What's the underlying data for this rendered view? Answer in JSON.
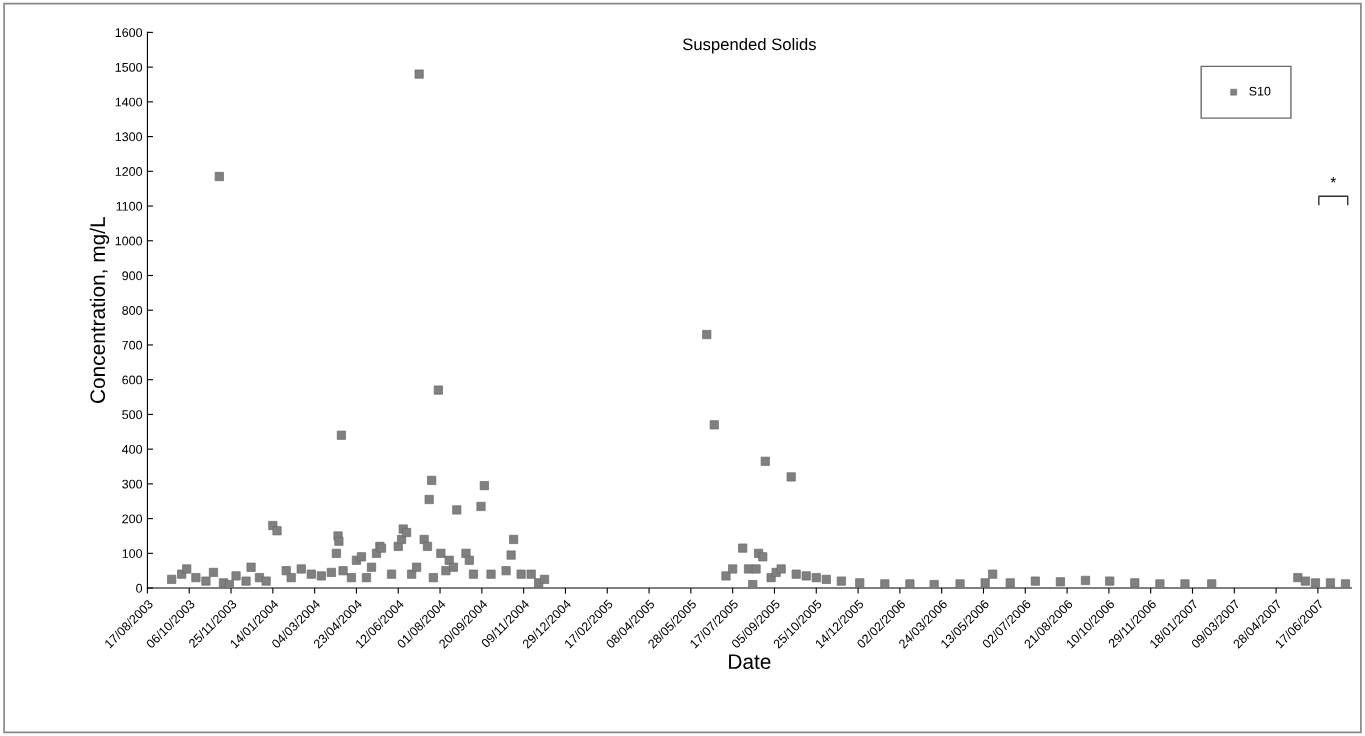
{
  "chart_data": {
    "type": "scatter",
    "title": "Suspended Solids",
    "xlabel": "Date",
    "ylabel": "Concentration, mg/L",
    "x": [
      "2003-09-15",
      "2003-09-27",
      "2003-10-03",
      "2003-10-14",
      "2003-10-26",
      "2003-11-04",
      "2003-11-11",
      "2003-11-16",
      "2003-11-23",
      "2003-12-01",
      "2003-12-13",
      "2003-12-19",
      "2003-12-29",
      "2004-01-06",
      "2004-01-14",
      "2004-01-19",
      "2004-01-30",
      "2004-02-05",
      "2004-02-17",
      "2004-02-29",
      "2004-03-12",
      "2004-03-24",
      "2004-03-30",
      "2004-04-01",
      "2004-04-02",
      "2004-04-05",
      "2004-04-07",
      "2004-04-17",
      "2004-04-23",
      "2004-04-29",
      "2004-05-05",
      "2004-05-11",
      "2004-05-17",
      "2004-05-21",
      "2004-05-23",
      "2004-06-04",
      "2004-06-12",
      "2004-06-16",
      "2004-06-18",
      "2004-06-22",
      "2004-06-28",
      "2004-07-04",
      "2004-07-07",
      "2004-07-13",
      "2004-07-17",
      "2004-07-19",
      "2004-07-22",
      "2004-07-24",
      "2004-07-30",
      "2004-08-02",
      "2004-08-08",
      "2004-08-12",
      "2004-08-17",
      "2004-08-21",
      "2004-09-01",
      "2004-09-05",
      "2004-09-10",
      "2004-09-19",
      "2004-09-23",
      "2004-10-01",
      "2004-10-19",
      "2004-10-25",
      "2004-10-28",
      "2004-11-06",
      "2004-11-18",
      "2004-11-27",
      "2004-12-04",
      "2005-06-16",
      "2005-06-25",
      "2005-07-09",
      "2005-07-17",
      "2005-07-29",
      "2005-08-05",
      "2005-08-10",
      "2005-08-14",
      "2005-08-17",
      "2005-08-22",
      "2005-08-25",
      "2005-09-01",
      "2005-09-07",
      "2005-09-13",
      "2005-09-25",
      "2005-10-01",
      "2005-10-13",
      "2005-10-25",
      "2005-11-06",
      "2005-11-24",
      "2005-12-16",
      "2006-01-15",
      "2006-02-14",
      "2006-03-15",
      "2006-04-15",
      "2006-05-15",
      "2006-05-24",
      "2006-06-14",
      "2006-07-14",
      "2006-08-13",
      "2006-09-12",
      "2006-10-11",
      "2006-11-10",
      "2006-12-10",
      "2007-01-09",
      "2007-02-10",
      "2007-05-24",
      "2007-06-02",
      "2007-06-14",
      "2007-07-02",
      "2007-07-20"
    ],
    "series": [
      {
        "name": "S10",
        "color": "#808080",
        "values": [
          25,
          40,
          55,
          30,
          20,
          45,
          1185,
          15,
          10,
          35,
          20,
          60,
          30,
          20,
          180,
          165,
          50,
          30,
          55,
          40,
          35,
          45,
          100,
          150,
          135,
          440,
          50,
          30,
          80,
          90,
          30,
          60,
          100,
          120,
          115,
          40,
          120,
          140,
          170,
          160,
          40,
          60,
          1480,
          140,
          120,
          255,
          310,
          30,
          570,
          100,
          50,
          80,
          60,
          225,
          100,
          80,
          40,
          235,
          295,
          40,
          50,
          95,
          140,
          40,
          40,
          15,
          25,
          730,
          470,
          35,
          55,
          115,
          55,
          10,
          55,
          100,
          90,
          365,
          30,
          45,
          55,
          320,
          40,
          35,
          30,
          25,
          20,
          15,
          12,
          12,
          10,
          12,
          15,
          40,
          15,
          20,
          18,
          22,
          20,
          15,
          12,
          12,
          12,
          30,
          20,
          15,
          15,
          12
        ]
      }
    ],
    "marker": "square",
    "legend": "top right",
    "grid": false,
    "ylim": [
      0,
      1600
    ],
    "yticks": [
      0,
      100,
      200,
      300,
      400,
      500,
      600,
      700,
      800,
      900,
      1000,
      1100,
      1200,
      1300,
      1400,
      1500,
      1600
    ],
    "xlim": [
      "2003-08-17",
      "2007-07-27"
    ],
    "xticks": [
      {
        "value": "2003-08-17",
        "label": "17/08/2003"
      },
      {
        "value": "2003-10-06",
        "label": "06/10/2003"
      },
      {
        "value": "2003-11-25",
        "label": "25/11/2003"
      },
      {
        "value": "2004-01-14",
        "label": "14/01/2004"
      },
      {
        "value": "2004-03-04",
        "label": "04/03/2004"
      },
      {
        "value": "2004-04-23",
        "label": "23/04/2004"
      },
      {
        "value": "2004-06-12",
        "label": "12/06/2004"
      },
      {
        "value": "2004-08-01",
        "label": "01/08/2004"
      },
      {
        "value": "2004-09-20",
        "label": "20/09/2004"
      },
      {
        "value": "2004-11-09",
        "label": "09/11/2004"
      },
      {
        "value": "2004-12-29",
        "label": "29/12/2004"
      },
      {
        "value": "2005-02-17",
        "label": "17/02/2005"
      },
      {
        "value": "2005-04-08",
        "label": "08/04/2005"
      },
      {
        "value": "2005-05-28",
        "label": "28/05/2005"
      },
      {
        "value": "2005-07-17",
        "label": "17/07/2005"
      },
      {
        "value": "2005-09-05",
        "label": "05/09/2005"
      },
      {
        "value": "2005-10-25",
        "label": "25/10/2005"
      },
      {
        "value": "2005-12-14",
        "label": "14/12/2005"
      },
      {
        "value": "2006-02-02",
        "label": "02/02/2006"
      },
      {
        "value": "2006-03-24",
        "label": "24/03/2006"
      },
      {
        "value": "2006-05-13",
        "label": "13/05/2006"
      },
      {
        "value": "2006-07-02",
        "label": "02/07/2006"
      },
      {
        "value": "2006-08-21",
        "label": "21/08/2006"
      },
      {
        "value": "2006-10-10",
        "label": "10/10/2006"
      },
      {
        "value": "2006-11-29",
        "label": "29/11/2006"
      },
      {
        "value": "2007-01-18",
        "label": "18/01/2007"
      },
      {
        "value": "2007-03-09",
        "label": "09/03/2007"
      },
      {
        "value": "2007-04-28",
        "label": "28/04/2007"
      },
      {
        "value": "2007-06-17",
        "label": "17/06/2007"
      }
    ],
    "annotations": [
      "*"
    ]
  }
}
